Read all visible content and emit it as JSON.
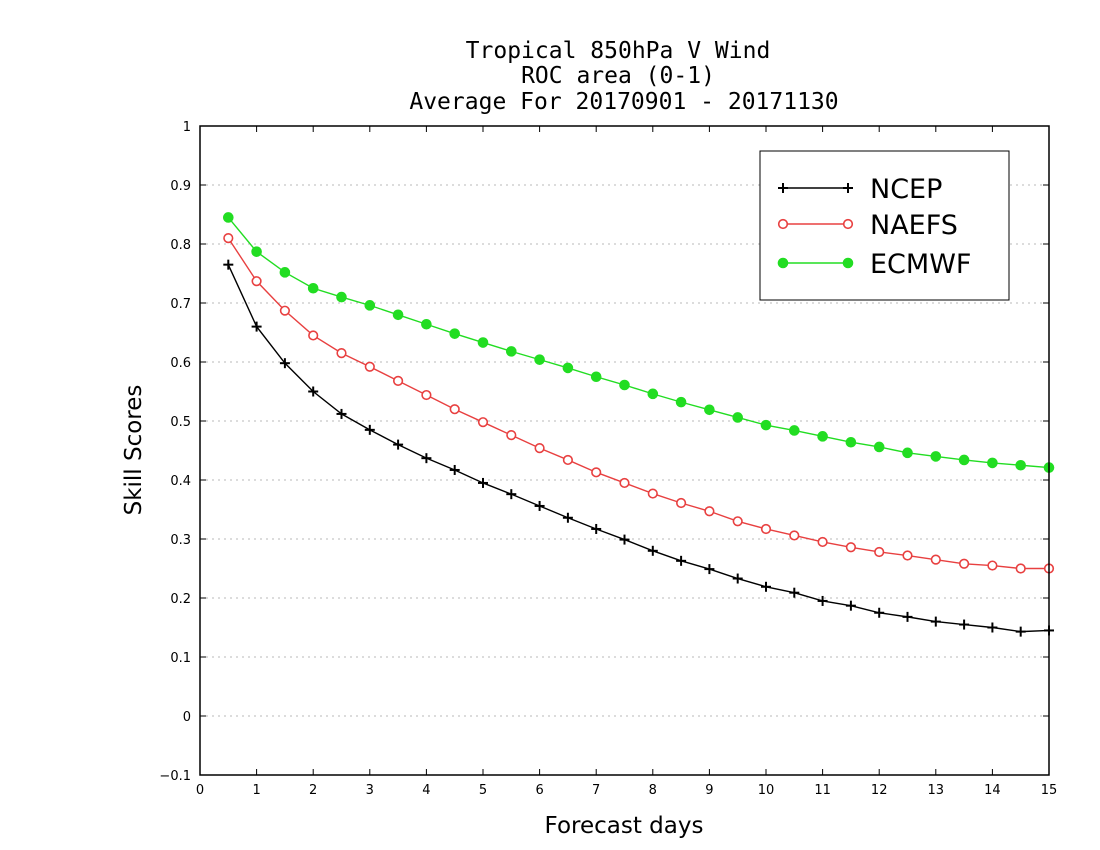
{
  "chart_data": {
    "type": "line",
    "title": [
      "Tropical 850hPa V Wind",
      "ROC area (0-1)",
      "Average For 20170901 - 20171130"
    ],
    "xlabel": "Forecast days",
    "ylabel": "Skill Scores",
    "xlim": [
      0,
      15
    ],
    "ylim": [
      -0.1,
      1
    ],
    "xticks": [
      "0",
      "1",
      "2",
      "3",
      "4",
      "5",
      "6",
      "7",
      "8",
      "9",
      "10",
      "11",
      "12",
      "13",
      "14",
      "15"
    ],
    "yticks": [
      "−0.1",
      "0",
      "0.1",
      "0.2",
      "0.3",
      "0.4",
      "0.5",
      "0.6",
      "0.7",
      "0.8",
      "0.9",
      "1"
    ],
    "grid": true,
    "legend_position": "top-right",
    "x": [
      0.5,
      1,
      1.5,
      2,
      2.5,
      3,
      3.5,
      4,
      4.5,
      5,
      5.5,
      6,
      6.5,
      7,
      7.5,
      8,
      8.5,
      9,
      9.5,
      10,
      10.5,
      11,
      11.5,
      12,
      12.5,
      13,
      13.5,
      14,
      14.5,
      15
    ],
    "series": [
      {
        "name": "NCEP",
        "color": "#000000",
        "marker": "plus",
        "values": [
          0.765,
          0.66,
          0.598,
          0.55,
          0.512,
          0.485,
          0.46,
          0.437,
          0.417,
          0.395,
          0.376,
          0.356,
          0.336,
          0.317,
          0.299,
          0.28,
          0.263,
          0.249,
          0.233,
          0.219,
          0.209,
          0.195,
          0.187,
          0.175,
          0.168,
          0.16,
          0.155,
          0.15,
          0.143,
          0.145
        ]
      },
      {
        "name": "NAEFS",
        "color": "#e84040",
        "marker": "open-circle",
        "values": [
          0.81,
          0.737,
          0.687,
          0.645,
          0.615,
          0.592,
          0.568,
          0.544,
          0.52,
          0.498,
          0.476,
          0.454,
          0.434,
          0.413,
          0.395,
          0.377,
          0.361,
          0.347,
          0.33,
          0.317,
          0.306,
          0.295,
          0.286,
          0.278,
          0.272,
          0.265,
          0.258,
          0.255,
          0.25,
          0.25
        ]
      },
      {
        "name": "ECMWF",
        "color": "#22dd22",
        "marker": "filled-circle",
        "values": [
          0.845,
          0.787,
          0.752,
          0.725,
          0.71,
          0.696,
          0.68,
          0.664,
          0.648,
          0.633,
          0.618,
          0.604,
          0.59,
          0.575,
          0.561,
          0.546,
          0.532,
          0.519,
          0.506,
          0.493,
          0.484,
          0.474,
          0.464,
          0.456,
          0.446,
          0.44,
          0.434,
          0.429,
          0.425,
          0.421
        ]
      }
    ]
  }
}
